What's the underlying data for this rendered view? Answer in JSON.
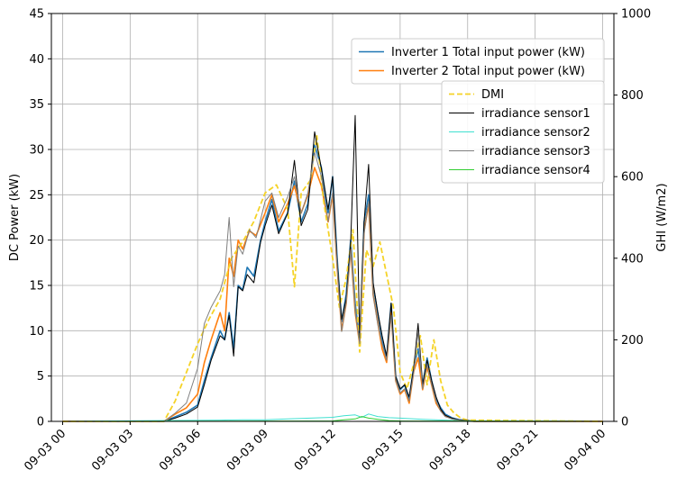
{
  "chart_data": {
    "type": "line",
    "ylabel": "DC Power (kW)",
    "ylabel_right": "GHI (W/m2)",
    "ylim": [
      0,
      45
    ],
    "ylim_right": [
      0,
      1000
    ],
    "yticks": [
      "0",
      "5",
      "10",
      "15",
      "20",
      "25",
      "30",
      "35",
      "40",
      "45"
    ],
    "yticks_right": [
      "0",
      "200",
      "400",
      "600",
      "800",
      "1000"
    ],
    "xlim_hours": [
      -0.5,
      24.5
    ],
    "xticks": [
      {
        "hour": 0,
        "label": "09-03 00"
      },
      {
        "hour": 3,
        "label": "09-03 03"
      },
      {
        "hour": 6,
        "label": "09-03 06"
      },
      {
        "hour": 9,
        "label": "09-03 09"
      },
      {
        "hour": 12,
        "label": "09-03 12"
      },
      {
        "hour": 15,
        "label": "09-03 15"
      },
      {
        "hour": 18,
        "label": "09-03 18"
      },
      {
        "hour": 21,
        "label": "09-03 21"
      },
      {
        "hour": 24,
        "label": "09-04 00"
      }
    ],
    "grid": true,
    "legend_left": {
      "placement": "top-right",
      "entries": [
        "Inverter 1 Total input power (kW)",
        "Inverter 2 Total input power (kW)"
      ]
    },
    "legend_right": {
      "placement": "upper-right",
      "entries": [
        "DMI",
        "irradiance sensor1",
        "irradiance sensor2",
        "irradiance sensor3",
        "irradiance sensor4"
      ]
    },
    "series_left": [
      {
        "name": "Inverter 1 Total input power (kW)",
        "color": "#1f77b4",
        "x": [
          0,
          4.5,
          5.0,
          5.5,
          6.0,
          6.3,
          6.6,
          7.0,
          7.2,
          7.4,
          7.6,
          7.8,
          8.0,
          8.2,
          8.5,
          8.8,
          9.0,
          9.3,
          9.6,
          10.0,
          10.3,
          10.6,
          10.9,
          11.2,
          11.5,
          11.8,
          12.0,
          12.2,
          12.4,
          12.6,
          12.8,
          13.0,
          13.2,
          13.4,
          13.6,
          13.8,
          14.0,
          14.2,
          14.4,
          14.6,
          14.8,
          15.0,
          15.2,
          15.4,
          15.6,
          15.8,
          16.0,
          16.2,
          16.4,
          16.6,
          16.8,
          17.0,
          17.3,
          17.6,
          18.0,
          18.3,
          24
        ],
        "y": [
          0,
          0,
          0.5,
          1.0,
          1.8,
          4.5,
          7.0,
          10.0,
          9.0,
          12.0,
          8.0,
          15.0,
          14.5,
          17.0,
          16.0,
          20.0,
          22.0,
          24.5,
          21.0,
          23.0,
          26.5,
          22.0,
          24.0,
          30.5,
          28.0,
          23.0,
          27.0,
          18.0,
          11.0,
          14.0,
          20.0,
          13.0,
          9.0,
          22.0,
          25.0,
          15.0,
          12.0,
          9.0,
          7.0,
          13.0,
          5.0,
          3.5,
          4.0,
          2.5,
          6.0,
          8.0,
          4.0,
          7.0,
          4.5,
          2.5,
          1.5,
          0.8,
          0.4,
          0.2,
          0.1,
          0,
          0
        ]
      },
      {
        "name": "Inverter 2 Total input power (kW)",
        "color": "#ff7f0e",
        "x": [
          0,
          4.5,
          5.0,
          5.5,
          6.0,
          6.3,
          6.6,
          7.0,
          7.2,
          7.4,
          7.6,
          7.8,
          8.0,
          8.3,
          8.6,
          9.0,
          9.3,
          9.6,
          10.0,
          10.3,
          10.6,
          10.9,
          11.2,
          11.5,
          11.8,
          12.0,
          12.2,
          12.4,
          12.6,
          12.8,
          13.0,
          13.2,
          13.4,
          13.6,
          13.8,
          14.0,
          14.2,
          14.4,
          14.6,
          14.8,
          15.0,
          15.2,
          15.4,
          15.6,
          15.8,
          16.0,
          16.2,
          16.4,
          16.6,
          16.8,
          17.0,
          17.3,
          17.6,
          18.0,
          18.3,
          24
        ],
        "y": [
          0,
          0,
          0.8,
          1.5,
          3.0,
          6.5,
          9.0,
          12.0,
          10.0,
          18.0,
          16.0,
          20.0,
          19.0,
          21.0,
          20.5,
          23.0,
          25.0,
          22.0,
          24.0,
          26.0,
          23.0,
          25.0,
          28.0,
          26.0,
          22.0,
          25.0,
          17.0,
          10.0,
          13.0,
          19.0,
          12.0,
          8.5,
          21.0,
          24.0,
          14.0,
          11.0,
          8.0,
          6.5,
          12.0,
          4.5,
          3.0,
          3.5,
          2.0,
          5.5,
          7.0,
          3.5,
          6.0,
          4.0,
          2.0,
          1.2,
          0.6,
          0.3,
          0.1,
          0.05,
          0,
          0
        ]
      }
    ],
    "series_right": [
      {
        "name": "DMI",
        "color": "#f5d327",
        "dash": true,
        "x": [
          0,
          4.5,
          5.0,
          5.5,
          6.0,
          6.5,
          7.0,
          7.5,
          8.0,
          8.5,
          9.0,
          9.5,
          10.0,
          10.3,
          10.6,
          11.0,
          11.3,
          11.6,
          12.0,
          12.3,
          12.6,
          12.9,
          13.2,
          13.5,
          13.8,
          14.1,
          14.4,
          14.7,
          15.0,
          15.3,
          15.6,
          15.9,
          16.2,
          16.5,
          16.8,
          17.1,
          17.4,
          17.7,
          18.0,
          24
        ],
        "y": [
          0,
          0,
          50,
          120,
          190,
          250,
          300,
          400,
          440,
          490,
          560,
          580,
          520,
          330,
          560,
          590,
          700,
          540,
          400,
          280,
          350,
          470,
          170,
          420,
          380,
          440,
          360,
          280,
          120,
          80,
          140,
          210,
          90,
          200,
          100,
          40,
          20,
          8,
          3,
          0
        ]
      },
      {
        "name": "irradiance sensor1",
        "color": "#000000",
        "x": [
          0,
          4.5,
          5.0,
          5.5,
          6.0,
          6.3,
          6.6,
          7.0,
          7.2,
          7.4,
          7.6,
          7.8,
          8.0,
          8.2,
          8.5,
          8.8,
          9.0,
          9.3,
          9.6,
          10.0,
          10.3,
          10.6,
          10.9,
          11.2,
          11.5,
          11.8,
          12.0,
          12.2,
          12.4,
          12.6,
          12.8,
          13.0,
          13.2,
          13.4,
          13.6,
          13.8,
          14.0,
          14.2,
          14.4,
          14.6,
          14.8,
          15.0,
          15.2,
          15.4,
          15.6,
          15.8,
          16.0,
          16.2,
          16.4,
          16.6,
          16.8,
          17.0,
          17.3,
          17.6,
          18.0,
          18.3,
          24
        ],
        "y": [
          0,
          0,
          8,
          18,
          35,
          90,
          150,
          210,
          200,
          260,
          160,
          330,
          320,
          360,
          340,
          440,
          480,
          530,
          460,
          510,
          640,
          480,
          520,
          710,
          620,
          520,
          600,
          390,
          250,
          300,
          440,
          750,
          200,
          490,
          630,
          340,
          270,
          210,
          160,
          290,
          110,
          80,
          90,
          60,
          130,
          240,
          90,
          150,
          100,
          60,
          30,
          15,
          8,
          4,
          2,
          0,
          0
        ]
      },
      {
        "name": "irradiance sensor2",
        "color": "#40e0d0",
        "x": [
          0,
          7.0,
          8.0,
          9.0,
          10.0,
          11.0,
          12.0,
          12.5,
          13.0,
          13.3,
          13.6,
          14.0,
          14.5,
          15.0,
          16.0,
          17.0,
          18.0,
          24
        ],
        "y": [
          0,
          3,
          4,
          4,
          6,
          8,
          10,
          14,
          16,
          10,
          18,
          12,
          9,
          8,
          5,
          3,
          1,
          0
        ]
      },
      {
        "name": "irradiance sensor3",
        "color": "#808080",
        "x": [
          0,
          4.5,
          5.0,
          5.5,
          6.0,
          6.3,
          6.6,
          7.0,
          7.2,
          7.4,
          7.6,
          7.8,
          8.0,
          8.3,
          8.6,
          9.0,
          9.3,
          9.6,
          10.0,
          10.3,
          10.6,
          10.9,
          11.2,
          11.5,
          11.8,
          12.0,
          12.2,
          12.4,
          12.6,
          12.8,
          13.0,
          13.2,
          13.4,
          13.6,
          13.8,
          14.0,
          14.2,
          14.4,
          14.6,
          14.8,
          15.0,
          15.2,
          15.4,
          15.6,
          15.8,
          16.0,
          16.2,
          16.4,
          16.6,
          16.8,
          17.0,
          17.3,
          17.6,
          18.0,
          18.3,
          24
        ],
        "y": [
          0,
          0,
          20,
          45,
          130,
          240,
          280,
          320,
          360,
          500,
          330,
          430,
          410,
          470,
          450,
          540,
          560,
          500,
          550,
          600,
          510,
          560,
          660,
          600,
          490,
          560,
          380,
          220,
          290,
          420,
          270,
          190,
          460,
          540,
          310,
          240,
          190,
          150,
          260,
          100,
          70,
          80,
          50,
          120,
          220,
          80,
          140,
          90,
          50,
          25,
          12,
          6,
          3,
          1,
          0,
          0
        ]
      },
      {
        "name": "irradiance sensor4",
        "color": "#32cd32",
        "x": [
          0,
          12.0,
          12.5,
          13.0,
          13.3,
          13.6,
          14.0,
          14.5,
          15.0,
          24
        ],
        "y": [
          0,
          1,
          4,
          6,
          12,
          8,
          5,
          2,
          1,
          0
        ]
      }
    ]
  }
}
